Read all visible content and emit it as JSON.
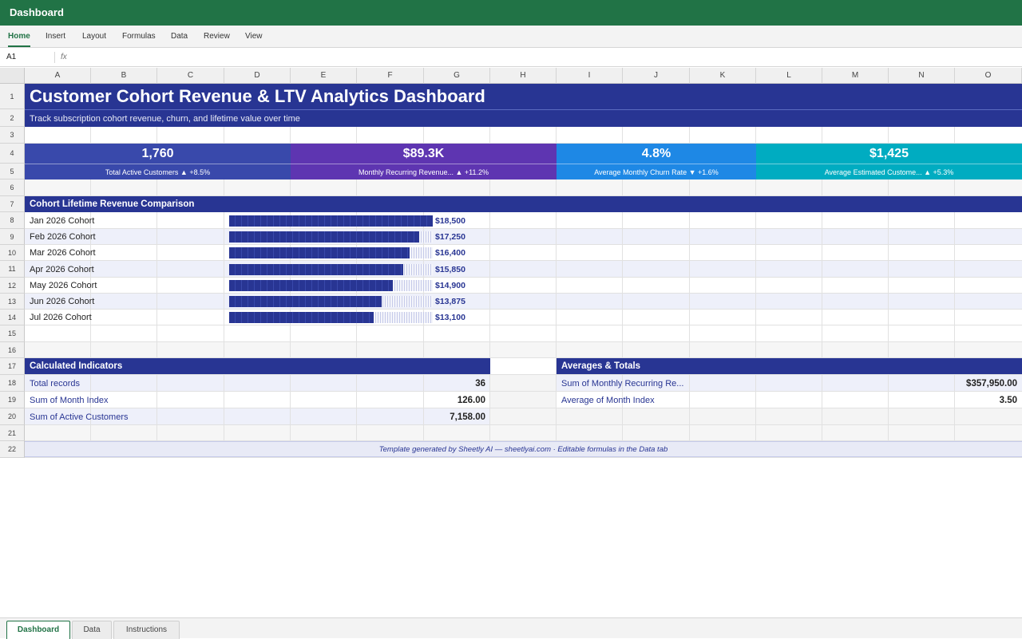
{
  "app": {
    "title": "Dashboard"
  },
  "ribbon": {
    "tabs": [
      "Home",
      "Insert",
      "Layout",
      "Formulas",
      "Data",
      "Review",
      "View"
    ],
    "active": "Home"
  },
  "formula_bar": {
    "cell_ref": "A1",
    "fx_label": "fx",
    "content": ""
  },
  "grid": {
    "columns": [
      "A",
      "B",
      "C",
      "D",
      "E",
      "F",
      "G",
      "H",
      "I",
      "J",
      "K",
      "L",
      "M",
      "N",
      "O"
    ],
    "rows": [
      "1",
      "2",
      "3",
      "4",
      "5",
      "6",
      "7",
      "8",
      "9",
      "10",
      "11",
      "12",
      "13",
      "14",
      "15",
      "16",
      "17",
      "18",
      "19",
      "20",
      "21",
      "22"
    ]
  },
  "dashboard": {
    "title": "Customer Cohort Revenue & LTV Analytics Dashboard",
    "subtitle": "Track subscription cohort revenue, churn, and lifetime value over time",
    "kpis": [
      {
        "value": "1,760",
        "label": "Total Active Customers ▲ +8.5%",
        "color": "#3949ab"
      },
      {
        "value": "$89.3K",
        "label": "Monthly Recurring Revenue... ▲ +11.2%",
        "color": "#5e35b1"
      },
      {
        "value": "4.8%",
        "label": "Average Monthly Churn Rate ▼ +1.6%",
        "color": "#1e88e5"
      },
      {
        "value": "$1,425",
        "label": "Average Estimated Custome... ▲ +5.3%",
        "color": "#00acc1"
      }
    ],
    "cohort_section_title": "Cohort Lifetime Revenue Comparison",
    "indicators": {
      "title": "Calculated Indicators",
      "rows": [
        {
          "label": "Total records",
          "value": "36"
        },
        {
          "label": "Sum of Month Index",
          "value": "126.00"
        },
        {
          "label": "Sum of Active Customers",
          "value": "7,158.00"
        }
      ]
    },
    "averages": {
      "title": "Averages & Totals",
      "rows": [
        {
          "label": "Sum of Monthly Recurring Re...",
          "value": "$357,950.00"
        },
        {
          "label": "Average of Month Index",
          "value": "3.50"
        }
      ]
    },
    "footer": "Template generated by Sheetly AI — sheetlyai.com · Editable formulas in the Data tab"
  },
  "chart_data": {
    "type": "bar",
    "categories": [
      "Jan 2026 Cohort",
      "Feb 2026 Cohort",
      "Mar 2026 Cohort",
      "Apr 2026 Cohort",
      "May 2026 Cohort",
      "Jun 2026 Cohort",
      "Jul 2026 Cohort"
    ],
    "values": [
      18500,
      17250,
      16400,
      15850,
      14900,
      13875,
      13100
    ],
    "value_labels": [
      "$18,500",
      "$17,250",
      "$16,400",
      "$15,850",
      "$14,900",
      "$13,875",
      "$13,100"
    ],
    "orientation": "horizontal",
    "title": "Cohort Lifetime Revenue Comparison",
    "xlim": [
      0,
      18500
    ]
  },
  "sheet_tabs": {
    "tabs": [
      "Dashboard",
      "Data",
      "Instructions"
    ],
    "active": "Dashboard"
  },
  "colors": {
    "header_green": "#217346",
    "navy": "#283593",
    "stripe": "#eef0fa"
  }
}
